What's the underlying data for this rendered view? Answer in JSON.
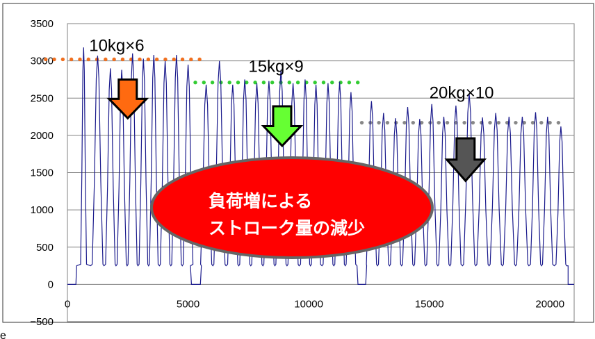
{
  "chart_data": {
    "type": "line",
    "title": "",
    "xlabel": "",
    "ylabel": "",
    "xlim": [
      0,
      21000
    ],
    "ylim": [
      -500,
      3500
    ],
    "xticks": [
      0,
      5000,
      10000,
      15000,
      20000
    ],
    "yticks": [
      -500,
      0,
      500,
      1000,
      1500,
      2000,
      2500,
      3000,
      3500
    ],
    "grid": "horizontal",
    "legend": "none",
    "series": [
      {
        "color": "#1a1a8c",
        "cycles": [
          {
            "t": 670,
            "peak": 3180
          },
          {
            "t": 1250,
            "peak": 3070
          },
          {
            "t": 1780,
            "peak": 2900
          },
          {
            "t": 2250,
            "peak": 2880
          },
          {
            "t": 2700,
            "peak": 3100
          },
          {
            "t": 3150,
            "peak": 3030
          },
          {
            "t": 3580,
            "peak": 3080
          },
          {
            "t": 4050,
            "peak": 3000
          },
          {
            "t": 4520,
            "peak": 3080
          },
          {
            "t": 5000,
            "peak": 2950
          },
          {
            "t": 5750,
            "peak": 2680
          },
          {
            "t": 6300,
            "peak": 3000
          },
          {
            "t": 6850,
            "peak": 2680
          },
          {
            "t": 7350,
            "peak": 2750
          },
          {
            "t": 7850,
            "peak": 2700
          },
          {
            "t": 8350,
            "peak": 2730
          },
          {
            "t": 8850,
            "peak": 2880
          },
          {
            "t": 9350,
            "peak": 2700
          },
          {
            "t": 9850,
            "peak": 2750
          },
          {
            "t": 10300,
            "peak": 2680
          },
          {
            "t": 10800,
            "peak": 2700
          },
          {
            "t": 11280,
            "peak": 2720
          },
          {
            "t": 11750,
            "peak": 2580
          },
          {
            "t": 12600,
            "peak": 2460
          },
          {
            "t": 13100,
            "peak": 2300
          },
          {
            "t": 13600,
            "peak": 2230
          },
          {
            "t": 14100,
            "peak": 2380
          },
          {
            "t": 14600,
            "peak": 2220
          },
          {
            "t": 15100,
            "peak": 2420
          },
          {
            "t": 15600,
            "peak": 2250
          },
          {
            "t": 16100,
            "peak": 2400
          },
          {
            "t": 16650,
            "peak": 2560
          },
          {
            "t": 17200,
            "peak": 2240
          },
          {
            "t": 17750,
            "peak": 2300
          },
          {
            "t": 18300,
            "peak": 2250
          },
          {
            "t": 18850,
            "peak": 2250
          },
          {
            "t": 19400,
            "peak": 2310
          },
          {
            "t": 19900,
            "peak": 2250
          },
          {
            "t": 20450,
            "peak": 2120
          }
        ],
        "baseline": 250,
        "gaps": [
          {
            "x0": 5100,
            "x1": 5550
          },
          {
            "x0": 12000,
            "x1": 12400
          }
        ]
      }
    ],
    "reference_lines": [
      {
        "y": 3020,
        "x0": -900,
        "x1": 5650,
        "color": "#f07020"
      },
      {
        "y": 2710,
        "x0": 5300,
        "x1": 12200,
        "color": "#33cc33"
      },
      {
        "y": 2170,
        "x0": 12200,
        "x1": 20700,
        "color": "#888888"
      }
    ],
    "annotations": [
      {
        "text": "10kg×6",
        "x": 900,
        "y": 3130
      },
      {
        "text": "15kg×9",
        "x": 7500,
        "y": 2850
      },
      {
        "text": "20kg×10",
        "x": 15000,
        "y": 2500
      }
    ],
    "arrows": [
      {
        "x": 2500,
        "y_top": 2750,
        "y_bottom": 2230,
        "color": "#ff6a10"
      },
      {
        "x": 8900,
        "y_top": 2390,
        "y_bottom": 1860,
        "color": "#66ff33"
      },
      {
        "x": 16500,
        "y_top": 1960,
        "y_bottom": 1390,
        "color": "#555555"
      }
    ],
    "callout": {
      "lines": [
        "負荷増による",
        "ストローク量の減少"
      ],
      "color": "#ff0000",
      "border": "#666666"
    },
    "corner_mark": "e"
  }
}
